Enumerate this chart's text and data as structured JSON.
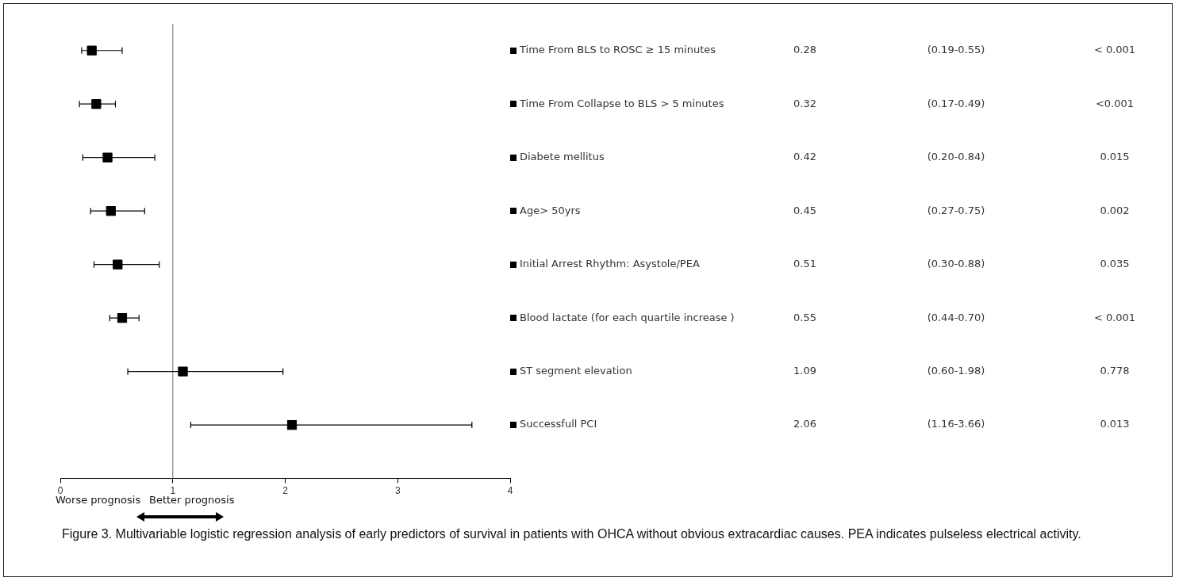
{
  "chart_data": {
    "type": "scatter",
    "orientation": "horizontal",
    "categories": [
      "Time From BLS to ROSC ≥ 15 minutes",
      "Time From Collapse to BLS > 5 minutes",
      "Diabete mellitus",
      "Age> 50yrs",
      "Initial Arrest Rhythm: Asystole/PEA",
      "Blood lactate (for each quartile increase )",
      "ST segment elevation",
      "Successfull PCI"
    ],
    "values": [
      0.28,
      0.32,
      0.42,
      0.45,
      0.51,
      0.55,
      1.09,
      2.06
    ],
    "errors": [
      [
        0.19,
        0.55
      ],
      [
        0.17,
        0.49
      ],
      [
        0.2,
        0.84
      ],
      [
        0.27,
        0.75
      ],
      [
        0.3,
        0.88
      ],
      [
        0.44,
        0.7
      ],
      [
        0.6,
        1.98
      ],
      [
        1.16,
        3.66
      ]
    ],
    "color": "#000000",
    "marker": "square",
    "data_labels": true,
    "grid": false,
    "legend": false,
    "xlim": [
      0,
      4
    ],
    "xticks": [
      0,
      1,
      2,
      3,
      4
    ],
    "ref_lines": [
      {
        "axis": "x",
        "value": 1,
        "color": "#888888"
      }
    ],
    "annotations": [
      "(0.19-0.55)",
      "(0.17-0.49)",
      "(0.20-0.84)",
      "(0.27-0.75)",
      "(0.30-0.88)",
      "(0.44-0.70)",
      "(0.60-1.98)",
      "(1.16-3.66)",
      "< 0.001",
      "<0.001",
      "0.015",
      "0.002",
      "0.035",
      "< 0.001",
      "0.778",
      "0.013",
      "Worse prognosis",
      "Better prognosis",
      "Figure 3. Multivariable logistic regression analysis of early predictors of survival in patients with OHCA without obvious extracardiac causes. PEA indicates pulseless electrical activity."
    ]
  }
}
